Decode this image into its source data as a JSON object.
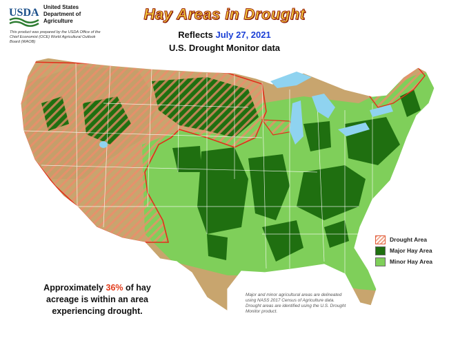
{
  "logo": {
    "text": "USDA"
  },
  "agency": {
    "line1": "United States",
    "line2": "Department of",
    "line3": "Agriculture"
  },
  "prep_note": "This product was prepared by the USDA Office of the Chief Economist (OCE) World Agricultural Outlook Board (WAOB)",
  "title": "Hay Areas in Drought",
  "reflects": {
    "label": "Reflects",
    "date": "July 27, 2021"
  },
  "subtitle": "U.S. Drought Monitor data",
  "legend": [
    {
      "label": "Drought Area",
      "color": "#f0a78c"
    },
    {
      "label": "Major Hay Area",
      "color": "#1f6f10"
    },
    {
      "label": "Minor Hay Area",
      "color": "#7fcf5a"
    }
  ],
  "stat": {
    "prefix": "Approximately",
    "percent": "36%",
    "line1_suffix": "of hay",
    "line2": "acreage is within an area",
    "line3": "experiencing drought."
  },
  "source_note": "Major and minor agricultural areas are delineated using NASS 2017 Census of Agriculture data. Drought areas are identified using the U.S. Drought Monitor product.",
  "colors": {
    "background_land": "#c8a56e",
    "minor": "#7fcf5a",
    "major": "#1f6f10",
    "drought_outline": "#e0301a",
    "water": "#8fd3f0",
    "hatch": "#f08a6a"
  }
}
